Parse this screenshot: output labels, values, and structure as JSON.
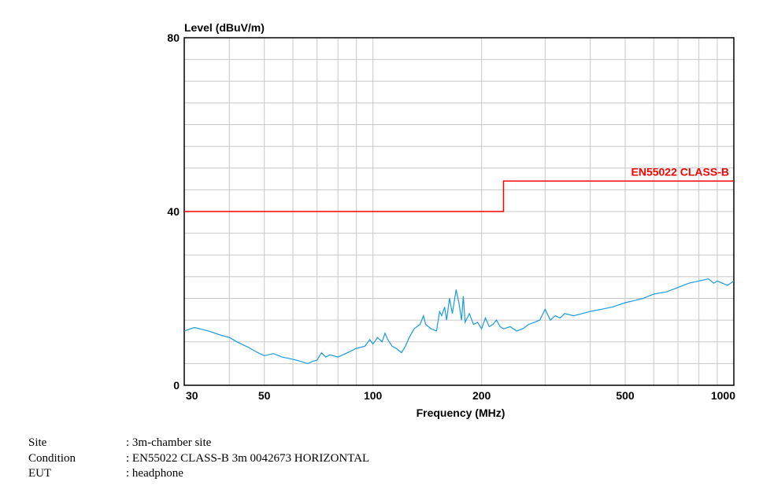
{
  "chart_data": {
    "type": "line",
    "ylabel": "Level (dBuV/m)",
    "xlabel": "Frequency (MHz)",
    "x_scale": "log",
    "xlim": [
      30,
      1000
    ],
    "ylim": [
      0,
      80
    ],
    "x_ticks": [
      30,
      50,
      100,
      200,
      500,
      1000
    ],
    "y_ticks": [
      0,
      40,
      80
    ],
    "grid": true,
    "limit_line": {
      "name": "EN55022 CLASS-B",
      "color": "#ff0000",
      "x": [
        30,
        230,
        230,
        1000
      ],
      "y": [
        40,
        40,
        47,
        47
      ]
    },
    "series": [
      {
        "color": "#1a9be0",
        "x": [
          30,
          32,
          35,
          38,
          40,
          42,
          45,
          48,
          50,
          53,
          56,
          60,
          63,
          66,
          68,
          70,
          72,
          74,
          76,
          80,
          85,
          90,
          95,
          98,
          100,
          103,
          106,
          108,
          110,
          113,
          116,
          120,
          123,
          126,
          130,
          135,
          138,
          140,
          145,
          150,
          153,
          155,
          158,
          160,
          163,
          166,
          170,
          173,
          176,
          178,
          180,
          185,
          190,
          195,
          200,
          205,
          210,
          215,
          220,
          225,
          230,
          240,
          250,
          260,
          270,
          280,
          290,
          300,
          310,
          320,
          330,
          340,
          360,
          380,
          400,
          430,
          460,
          500,
          530,
          560,
          600,
          650,
          700,
          750,
          800,
          850,
          880,
          900,
          930,
          960,
          1000
        ],
        "y": [
          12.5,
          13.3,
          12.5,
          11.5,
          11.0,
          10.0,
          8.8,
          7.5,
          6.8,
          7.3,
          6.5,
          6.0,
          5.5,
          5.0,
          5.5,
          5.8,
          7.5,
          6.5,
          7.0,
          6.5,
          7.5,
          8.5,
          9.0,
          10.5,
          9.5,
          11.0,
          10.0,
          12.0,
          10.5,
          9.0,
          8.5,
          7.5,
          9.0,
          11.0,
          13.0,
          14.0,
          16.0,
          14.0,
          13.0,
          12.5,
          17.0,
          16.0,
          18.0,
          15.0,
          20.0,
          16.5,
          22.0,
          19.0,
          15.0,
          20.5,
          14.5,
          16.5,
          14.0,
          14.5,
          13.0,
          15.5,
          13.5,
          14.0,
          15.0,
          13.5,
          13.0,
          13.5,
          12.5,
          13.0,
          14.0,
          14.5,
          15.0,
          17.5,
          15.0,
          16.0,
          15.5,
          16.5,
          16.0,
          16.5,
          17.0,
          17.5,
          18.0,
          19.0,
          19.5,
          20.0,
          21.0,
          21.5,
          22.5,
          23.5,
          24.0,
          24.5,
          23.5,
          24.0,
          23.5,
          23.0,
          24.0
        ]
      }
    ]
  },
  "info": {
    "site_label": "Site",
    "site_value": ": 3m-chamber site",
    "condition_label": "Condition",
    "condition_value": ": EN55022 CLASS-B 3m 0042673 HORIZONTAL",
    "eut_label": "EUT",
    "eut_value": ": headphone"
  }
}
